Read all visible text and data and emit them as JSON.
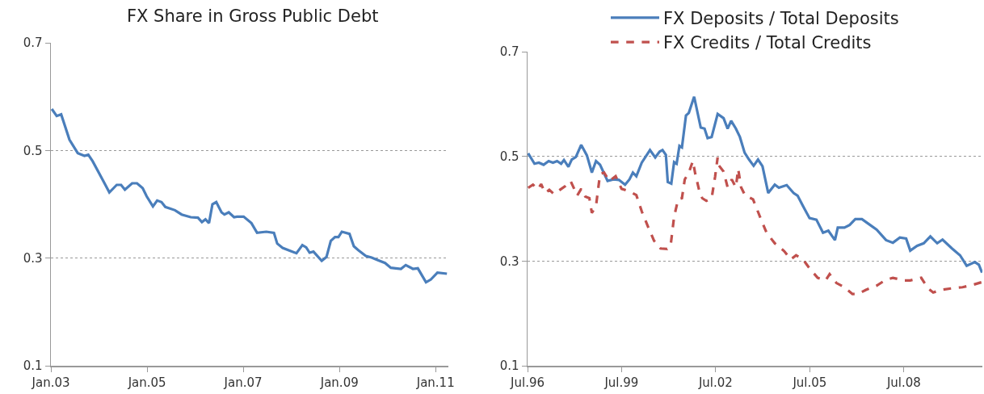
{
  "chart_data": [
    {
      "type": "line",
      "title": "FX Share in Gross Public Debt",
      "grid": "y",
      "legend": false,
      "marker": "none",
      "xlim": [
        "2003-01-01",
        "2011-04-08"
      ],
      "xticks": [
        {
          "value": "2003-01-01",
          "label": "Jan.03"
        },
        {
          "value": "2005-01-01",
          "label": "Jan.05"
        },
        {
          "value": "2007-01-01",
          "label": "Jan.07"
        },
        {
          "value": "2009-01-01",
          "label": "Jan.09"
        },
        {
          "value": "2011-01-01",
          "label": "Jan.11"
        }
      ],
      "ylim": [
        0.1,
        0.7
      ],
      "yticks": [
        0.1,
        0.3,
        0.5,
        0.7
      ],
      "series": [
        {
          "color": "#4a7ebb",
          "line_style": "solid",
          "x": [
            "2003-01-08",
            "2003-02-14",
            "2003-03-20",
            "2003-05-22",
            "2003-07-24",
            "2003-09-13",
            "2003-10-12",
            "2003-11-14",
            "2004-01-26",
            "2004-03-20",
            "2004-05-15",
            "2004-06-17",
            "2004-07-16",
            "2004-09-09",
            "2004-10-16",
            "2004-11-28",
            "2004-12-28",
            "2005-02-14",
            "2005-03-18",
            "2005-04-20",
            "2005-05-19",
            "2005-07-31",
            "2005-09-20",
            "2005-11-28",
            "2006-01-22",
            "2006-02-21",
            "2006-03-20",
            "2006-04-16",
            "2006-05-12",
            "2006-06-10",
            "2006-07-20",
            "2006-08-11",
            "2006-09-13",
            "2006-10-23",
            "2006-11-14",
            "2007-01-04",
            "2007-03-04",
            "2007-04-16",
            "2007-06-25",
            "2007-08-22",
            "2007-09-16",
            "2007-10-27",
            "2007-12-28",
            "2008-02-09",
            "2008-03-25",
            "2008-04-23",
            "2008-05-19",
            "2008-06-17",
            "2008-08-19",
            "2008-09-24",
            "2008-10-27",
            "2008-11-28",
            "2008-12-24",
            "2009-01-19",
            "2009-03-18",
            "2009-04-20",
            "2009-05-23",
            "2009-07-20",
            "2009-09-02",
            "2009-10-12",
            "2009-12-13",
            "2010-01-26",
            "2010-03-04",
            "2010-04-13",
            "2010-05-19",
            "2010-07-13",
            "2010-08-19",
            "2010-10-20",
            "2010-11-25",
            "2011-01-15",
            "2011-03-28"
          ],
          "values": [
            0.577,
            0.564,
            0.567,
            0.52,
            0.495,
            0.49,
            0.492,
            0.48,
            0.447,
            0.422,
            0.436,
            0.436,
            0.427,
            0.439,
            0.439,
            0.43,
            0.415,
            0.396,
            0.407,
            0.404,
            0.395,
            0.389,
            0.381,
            0.376,
            0.375,
            0.367,
            0.372,
            0.365,
            0.4,
            0.404,
            0.385,
            0.381,
            0.385,
            0.376,
            0.377,
            0.377,
            0.365,
            0.347,
            0.349,
            0.347,
            0.327,
            0.319,
            0.313,
            0.309,
            0.324,
            0.32,
            0.31,
            0.312,
            0.295,
            0.302,
            0.332,
            0.339,
            0.339,
            0.349,
            0.345,
            0.322,
            0.315,
            0.304,
            0.301,
            0.297,
            0.291,
            0.282,
            0.281,
            0.28,
            0.287,
            0.28,
            0.281,
            0.255,
            0.26,
            0.273,
            0.271
          ]
        }
      ]
    },
    {
      "type": "line",
      "grid": "y",
      "legend": "top",
      "marker": "none",
      "xlim": [
        "1996-07-01",
        "2011-01-01"
      ],
      "xticks": [
        {
          "value": "1996-07-01",
          "label": "Jul.96"
        },
        {
          "value": "1999-07-01",
          "label": "Jul.99"
        },
        {
          "value": "2002-07-01",
          "label": "Jul.02"
        },
        {
          "value": "2005-07-01",
          "label": "Jul.05"
        },
        {
          "value": "2008-07-01",
          "label": "Jul.08"
        }
      ],
      "ylim": [
        0.1,
        0.7
      ],
      "yticks": [
        0.1,
        0.3,
        0.5,
        0.7
      ],
      "series": [
        {
          "name": "FX Deposits / Total Deposits",
          "color": "#4a7ebb",
          "line_style": "solid",
          "x": [
            "1996-07-08",
            "1996-09-20",
            "1996-11-10",
            "1997-01-04",
            "1997-03-04",
            "1997-04-23",
            "1997-06-10",
            "1997-07-27",
            "1997-08-29",
            "1997-10-20",
            "1997-11-28",
            "1998-01-15",
            "1998-03-18",
            "1998-05-23",
            "1998-07-20",
            "1998-09-06",
            "1998-10-23",
            "1999-01-19",
            "1999-03-29",
            "1999-05-31",
            "1999-08-11",
            "1999-10-01",
            "1999-11-10",
            "1999-12-20",
            "2000-02-21",
            "2000-05-27",
            "2000-07-27",
            "2000-09-16",
            "2000-10-20",
            "2000-11-28",
            "2000-12-20",
            "2001-01-30",
            "2001-03-04",
            "2001-04-02",
            "2001-05-05",
            "2001-06-03",
            "2001-07-20",
            "2001-08-22",
            "2001-10-23",
            "2002-01-08",
            "2002-02-21",
            "2002-03-29",
            "2002-05-15",
            "2002-07-24",
            "2002-10-01",
            "2002-11-17",
            "2002-12-28",
            "2003-02-21",
            "2003-04-09",
            "2003-06-03",
            "2003-07-24",
            "2003-09-16",
            "2003-11-06",
            "2003-12-28",
            "2004-03-04",
            "2004-05-19",
            "2004-07-06",
            "2004-10-05",
            "2004-12-24",
            "2005-02-09",
            "2005-04-13",
            "2005-06-28",
            "2005-09-16",
            "2005-12-02",
            "2006-02-02",
            "2006-04-20",
            "2006-05-23",
            "2006-08-08",
            "2006-10-08",
            "2006-12-13",
            "2007-02-28",
            "2007-06-03",
            "2007-08-19",
            "2007-12-06",
            "2008-02-24",
            "2008-05-15",
            "2008-07-27",
            "2008-09-13",
            "2008-12-02",
            "2009-02-17",
            "2009-05-05",
            "2009-07-24",
            "2009-09-24",
            "2010-01-12",
            "2010-04-16",
            "2010-07-02",
            "2010-10-05",
            "2010-11-21",
            "2010-12-28"
          ],
          "values": [
            0.506,
            0.486,
            0.488,
            0.484,
            0.491,
            0.488,
            0.491,
            0.486,
            0.493,
            0.48,
            0.494,
            0.499,
            0.522,
            0.502,
            0.469,
            0.491,
            0.484,
            0.453,
            0.456,
            0.455,
            0.446,
            0.456,
            0.469,
            0.462,
            0.488,
            0.512,
            0.498,
            0.509,
            0.512,
            0.503,
            0.451,
            0.448,
            0.489,
            0.486,
            0.52,
            0.517,
            0.578,
            0.583,
            0.614,
            0.555,
            0.553,
            0.535,
            0.537,
            0.581,
            0.573,
            0.553,
            0.568,
            0.553,
            0.537,
            0.507,
            0.494,
            0.482,
            0.494,
            0.481,
            0.43,
            0.446,
            0.44,
            0.445,
            0.43,
            0.425,
            0.405,
            0.382,
            0.379,
            0.354,
            0.358,
            0.34,
            0.364,
            0.364,
            0.369,
            0.38,
            0.38,
            0.369,
            0.36,
            0.34,
            0.335,
            0.345,
            0.343,
            0.32,
            0.329,
            0.334,
            0.347,
            0.334,
            0.341,
            0.324,
            0.311,
            0.291,
            0.298,
            0.293,
            0.278
          ]
        },
        {
          "name": "FX Credits / Total Credits",
          "color": "#c0504d",
          "line_style": "dashed",
          "x": [
            "1996-07-08",
            "1996-09-02",
            "1996-10-30",
            "1996-12-06",
            "1997-01-22",
            "1997-03-11",
            "1997-05-05",
            "1997-07-13",
            "1997-09-13",
            "1997-11-14",
            "1998-01-01",
            "1998-01-30",
            "1998-03-18",
            "1998-05-05",
            "1998-06-21",
            "1998-07-20",
            "1998-09-06",
            "1998-10-23",
            "1998-12-09",
            "1999-02-09",
            "1999-04-23",
            "1999-07-01",
            "1999-10-01",
            "1999-12-20",
            "2000-02-21",
            "2000-05-08",
            "2000-07-13",
            "2000-09-27",
            "2000-12-13",
            "2001-01-22",
            "2001-03-04",
            "2001-04-20",
            "2001-06-03",
            "2001-07-06",
            "2001-08-22",
            "2001-10-08",
            "2001-11-06",
            "2001-12-24",
            "2002-01-26",
            "2002-03-14",
            "2002-05-15",
            "2002-06-24",
            "2002-07-24",
            "2002-08-01",
            "2002-10-01",
            "2002-11-17",
            "2003-01-04",
            "2003-02-21",
            "2003-03-20",
            "2003-04-23",
            "2003-06-10",
            "2003-09-09",
            "2003-11-28",
            "2004-02-14",
            "2004-05-19",
            "2004-09-06",
            "2004-11-21",
            "2005-01-22",
            "2005-04-13",
            "2005-06-28",
            "2005-10-01",
            "2006-01-01",
            "2006-02-17",
            "2006-05-08",
            "2006-08-08",
            "2006-11-10",
            "2007-01-12",
            "2007-04-16",
            "2007-08-19",
            "2007-11-22",
            "2008-02-24",
            "2008-06-28",
            "2008-09-13",
            "2009-01-19",
            "2009-04-06",
            "2009-06-07",
            "2009-09-09",
            "2010-01-12",
            "2010-05-15",
            "2010-09-20",
            "2010-12-31"
          ],
          "values": [
            0.44,
            0.446,
            0.437,
            0.447,
            0.43,
            0.436,
            0.428,
            0.436,
            0.443,
            0.453,
            0.436,
            0.425,
            0.438,
            0.423,
            0.42,
            0.392,
            0.405,
            0.466,
            0.469,
            0.453,
            0.462,
            0.438,
            0.433,
            0.426,
            0.395,
            0.364,
            0.339,
            0.324,
            0.323,
            0.329,
            0.385,
            0.418,
            0.42,
            0.456,
            0.469,
            0.491,
            0.466,
            0.433,
            0.42,
            0.415,
            0.42,
            0.461,
            0.498,
            0.484,
            0.471,
            0.441,
            0.456,
            0.441,
            0.476,
            0.441,
            0.425,
            0.418,
            0.385,
            0.354,
            0.334,
            0.319,
            0.303,
            0.311,
            0.303,
            0.286,
            0.268,
            0.263,
            0.275,
            0.258,
            0.25,
            0.237,
            0.237,
            0.245,
            0.253,
            0.263,
            0.268,
            0.263,
            0.263,
            0.268,
            0.248,
            0.24,
            0.245,
            0.248,
            0.25,
            0.255,
            0.26
          ]
        }
      ]
    }
  ]
}
